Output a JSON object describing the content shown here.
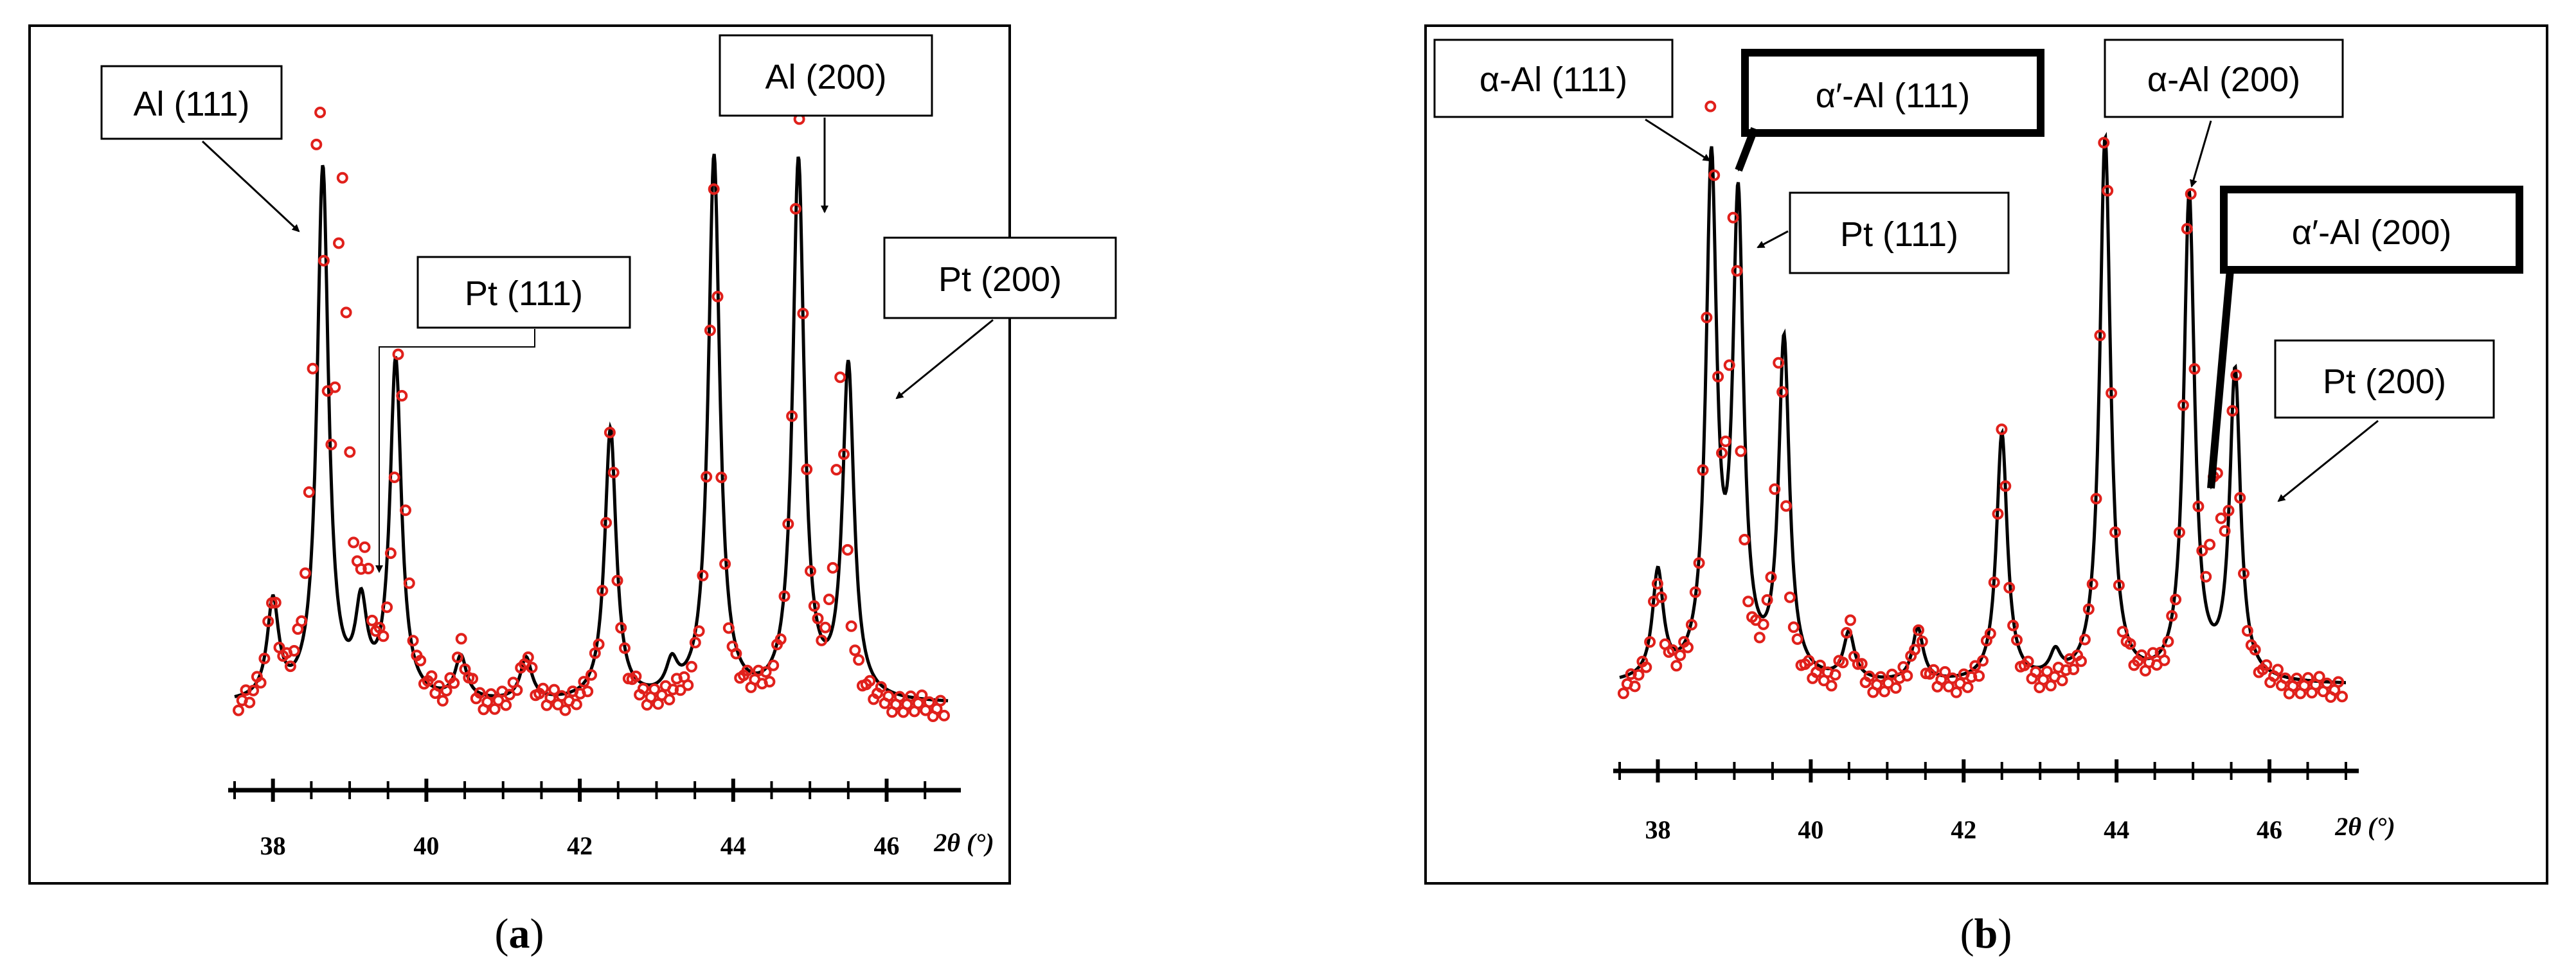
{
  "chart_data": [
    {
      "type": "scatter",
      "panel": "a",
      "caption_letter": "a",
      "xlabel": "2θ (°)",
      "xlim": [
        37.5,
        46.8
      ],
      "ylim": [
        0,
        100
      ],
      "x_ticks": [
        38,
        40,
        42,
        44,
        46
      ],
      "x_tick_labels": [
        "38",
        "40",
        "42",
        "44",
        "46"
      ],
      "grid": false,
      "series": [
        {
          "style": "line",
          "color": "#000000",
          "peaks": [
            [
              38.0,
              16
            ],
            [
              38.65,
              88
            ],
            [
              39.15,
              14
            ],
            [
              39.6,
              56
            ],
            [
              40.45,
              7
            ],
            [
              41.3,
              7
            ],
            [
              42.4,
              45
            ],
            [
              43.2,
              5
            ],
            [
              43.75,
              90
            ],
            [
              44.85,
              89
            ],
            [
              45.5,
              55
            ]
          ]
        },
        {
          "style": "circles",
          "color": "#e0201b",
          "peaks": [
            [
              38.0,
              16
            ],
            [
              38.6,
              100
            ],
            [
              38.9,
              80
            ],
            [
              39.2,
              17
            ],
            [
              39.65,
              58
            ],
            [
              40.45,
              9
            ],
            [
              41.3,
              9
            ],
            [
              42.4,
              46
            ],
            [
              43.75,
              85
            ],
            [
              44.85,
              96
            ],
            [
              45.4,
              51
            ]
          ]
        }
      ],
      "annotations": [
        "Al (111)",
        "Pt (111)",
        "Al (200)",
        "Pt (200)"
      ]
    },
    {
      "type": "scatter",
      "panel": "b",
      "caption_letter": "b",
      "xlabel": "2θ (°)",
      "xlim": [
        37.5,
        47.0
      ],
      "ylim": [
        0,
        100
      ],
      "x_ticks": [
        38,
        40,
        42,
        44,
        46
      ],
      "x_tick_labels": [
        "38",
        "40",
        "42",
        "44",
        "46"
      ],
      "grid": false,
      "series": [
        {
          "style": "line",
          "color": "#000000",
          "peaks": [
            [
              38.0,
              18
            ],
            [
              38.7,
              86
            ],
            [
              39.05,
              79
            ],
            [
              39.65,
              57
            ],
            [
              40.5,
              8
            ],
            [
              41.4,
              9
            ],
            [
              42.5,
              42
            ],
            [
              43.2,
              4
            ],
            [
              43.85,
              92
            ],
            [
              44.95,
              82
            ],
            [
              45.55,
              52
            ]
          ]
        },
        {
          "style": "circles",
          "color": "#e0201b",
          "peaks": [
            [
              38.0,
              17
            ],
            [
              38.7,
              96
            ],
            [
              39.0,
              74
            ],
            [
              39.6,
              55
            ],
            [
              40.5,
              10
            ],
            [
              41.4,
              10
            ],
            [
              42.5,
              44
            ],
            [
              43.85,
              97
            ],
            [
              44.95,
              86
            ],
            [
              45.3,
              30
            ],
            [
              45.55,
              49
            ]
          ]
        }
      ],
      "annotations": [
        "α-Al (111)",
        "α′-Al (111)",
        "Pt (111)",
        "α-Al (200)",
        "α′-Al (200)",
        "Pt (200)"
      ]
    }
  ]
}
